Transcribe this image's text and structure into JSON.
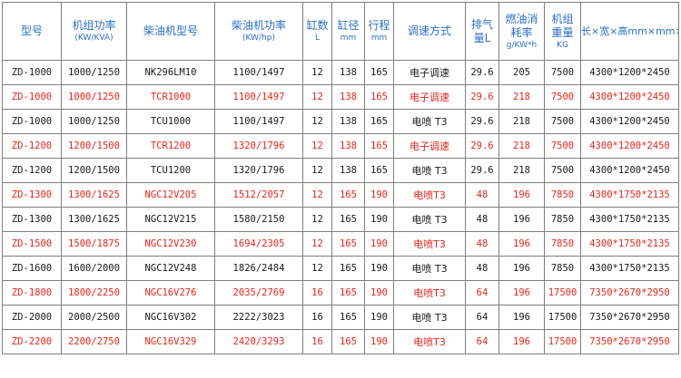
{
  "header": [
    {
      "main": "型号",
      "sub": ""
    },
    {
      "main": "机组功率",
      "sub": "(KW/KVA)"
    },
    {
      "main": "柴油机型号",
      "sub": ""
    },
    {
      "main": "柴油机功率",
      "sub": "(KW/hp)"
    },
    {
      "main": "缸数",
      "sub": "L"
    },
    {
      "main": "缸径",
      "sub": "mm"
    },
    {
      "main": "行程",
      "sub": "mm"
    },
    {
      "main": "调速方式",
      "sub": ""
    },
    {
      "main": "排气量L",
      "sub": ""
    },
    {
      "main": "燃油消耗率",
      "sub": "g/KW*h"
    },
    {
      "main": "机组重量",
      "sub": "KG"
    },
    {
      "main": "长×宽×高mm×mm×mm",
      "sub": ""
    }
  ],
  "rows": [
    {
      "red": false,
      "cells": [
        "ZD-1000",
        "1000/1250",
        "NK296LM10",
        "1100/1497",
        "12",
        "138",
        "165",
        "电子调速",
        "29.6",
        "205",
        "7500",
        "4300*1200*2450"
      ]
    },
    {
      "red": true,
      "cells": [
        "ZD-1000",
        "1000/1250",
        "TCR1000",
        "1100/1497",
        "12",
        "138",
        "165",
        "电子调速",
        "29.6",
        "218",
        "7500",
        "4300*1200*2450"
      ]
    },
    {
      "red": false,
      "cells": [
        "ZD-1000",
        "1000/1250",
        "TCU1000",
        "1100/1497",
        "12",
        "138",
        "165",
        "电喷 T3",
        "29.6",
        "218",
        "7500",
        "4300*1200*2450"
      ]
    },
    {
      "red": true,
      "cells": [
        "ZD-1200",
        "1200/1500",
        "TCR1200",
        "1320/1796",
        "12",
        "138",
        "165",
        "电子调速",
        "29.6",
        "218",
        "7500",
        "4300*1200*2450"
      ]
    },
    {
      "red": false,
      "cells": [
        "ZD-1200",
        "1200/1500",
        "TCU1200",
        "1320/1796",
        "12",
        "138",
        "165",
        "电喷 T3",
        "29.6",
        "218",
        "7500",
        "4300*1200*2450"
      ]
    },
    {
      "red": true,
      "cells": [
        "ZD-1300",
        "1300/1625",
        "NGC12V205",
        "1512/2057",
        "12",
        "165",
        "190",
        "电喷T3",
        "48",
        "196",
        "7850",
        "4300*1750*2135"
      ]
    },
    {
      "red": false,
      "cells": [
        "ZD-1300",
        "1300/1625",
        "NGC12V215",
        "1580/2150",
        "12",
        "165",
        "190",
        "电喷 T3",
        "48",
        "196",
        "7850",
        "4300*1750*2135"
      ]
    },
    {
      "red": true,
      "cells": [
        "ZD-1500",
        "1500/1875",
        "NGC12V230",
        "1694/2305",
        "12",
        "165",
        "190",
        "电喷T3",
        "48",
        "196",
        "7850",
        "4300*1750*2135"
      ]
    },
    {
      "red": false,
      "cells": [
        "ZD-1600",
        "1600/2000",
        "NGC12V248",
        "1826/2484",
        "12",
        "165",
        "190",
        "电喷 T3",
        "48",
        "196",
        "7850",
        "4300*1750*2135"
      ]
    },
    {
      "red": true,
      "cells": [
        "ZD-1800",
        "1800/2250",
        "NGC16V276",
        "2035/2769",
        "16",
        "165",
        "190",
        "电喷T3",
        "64",
        "196",
        "17500",
        "7350*2670*2950"
      ]
    },
    {
      "red": false,
      "cells": [
        "ZD-2000",
        "2000/2500",
        "NGC16V302",
        "2222/3023",
        "16",
        "165",
        "190",
        "电喷 T3",
        "64",
        "196",
        "17500",
        "7350*2670*2950"
      ]
    },
    {
      "red": true,
      "cells": [
        "ZD-2200",
        "2200/2750",
        "NGC16V329",
        "2420/3293",
        "16",
        "165",
        "190",
        "电喷T3",
        "64",
        "196",
        "17500",
        "7350*2670*2950"
      ]
    }
  ],
  "colors": {
    "header_text": "#2c6ec0",
    "highlight_text": "#e3261b",
    "normal_text": "#1a1a1a",
    "grid": "#7f7f7f"
  }
}
